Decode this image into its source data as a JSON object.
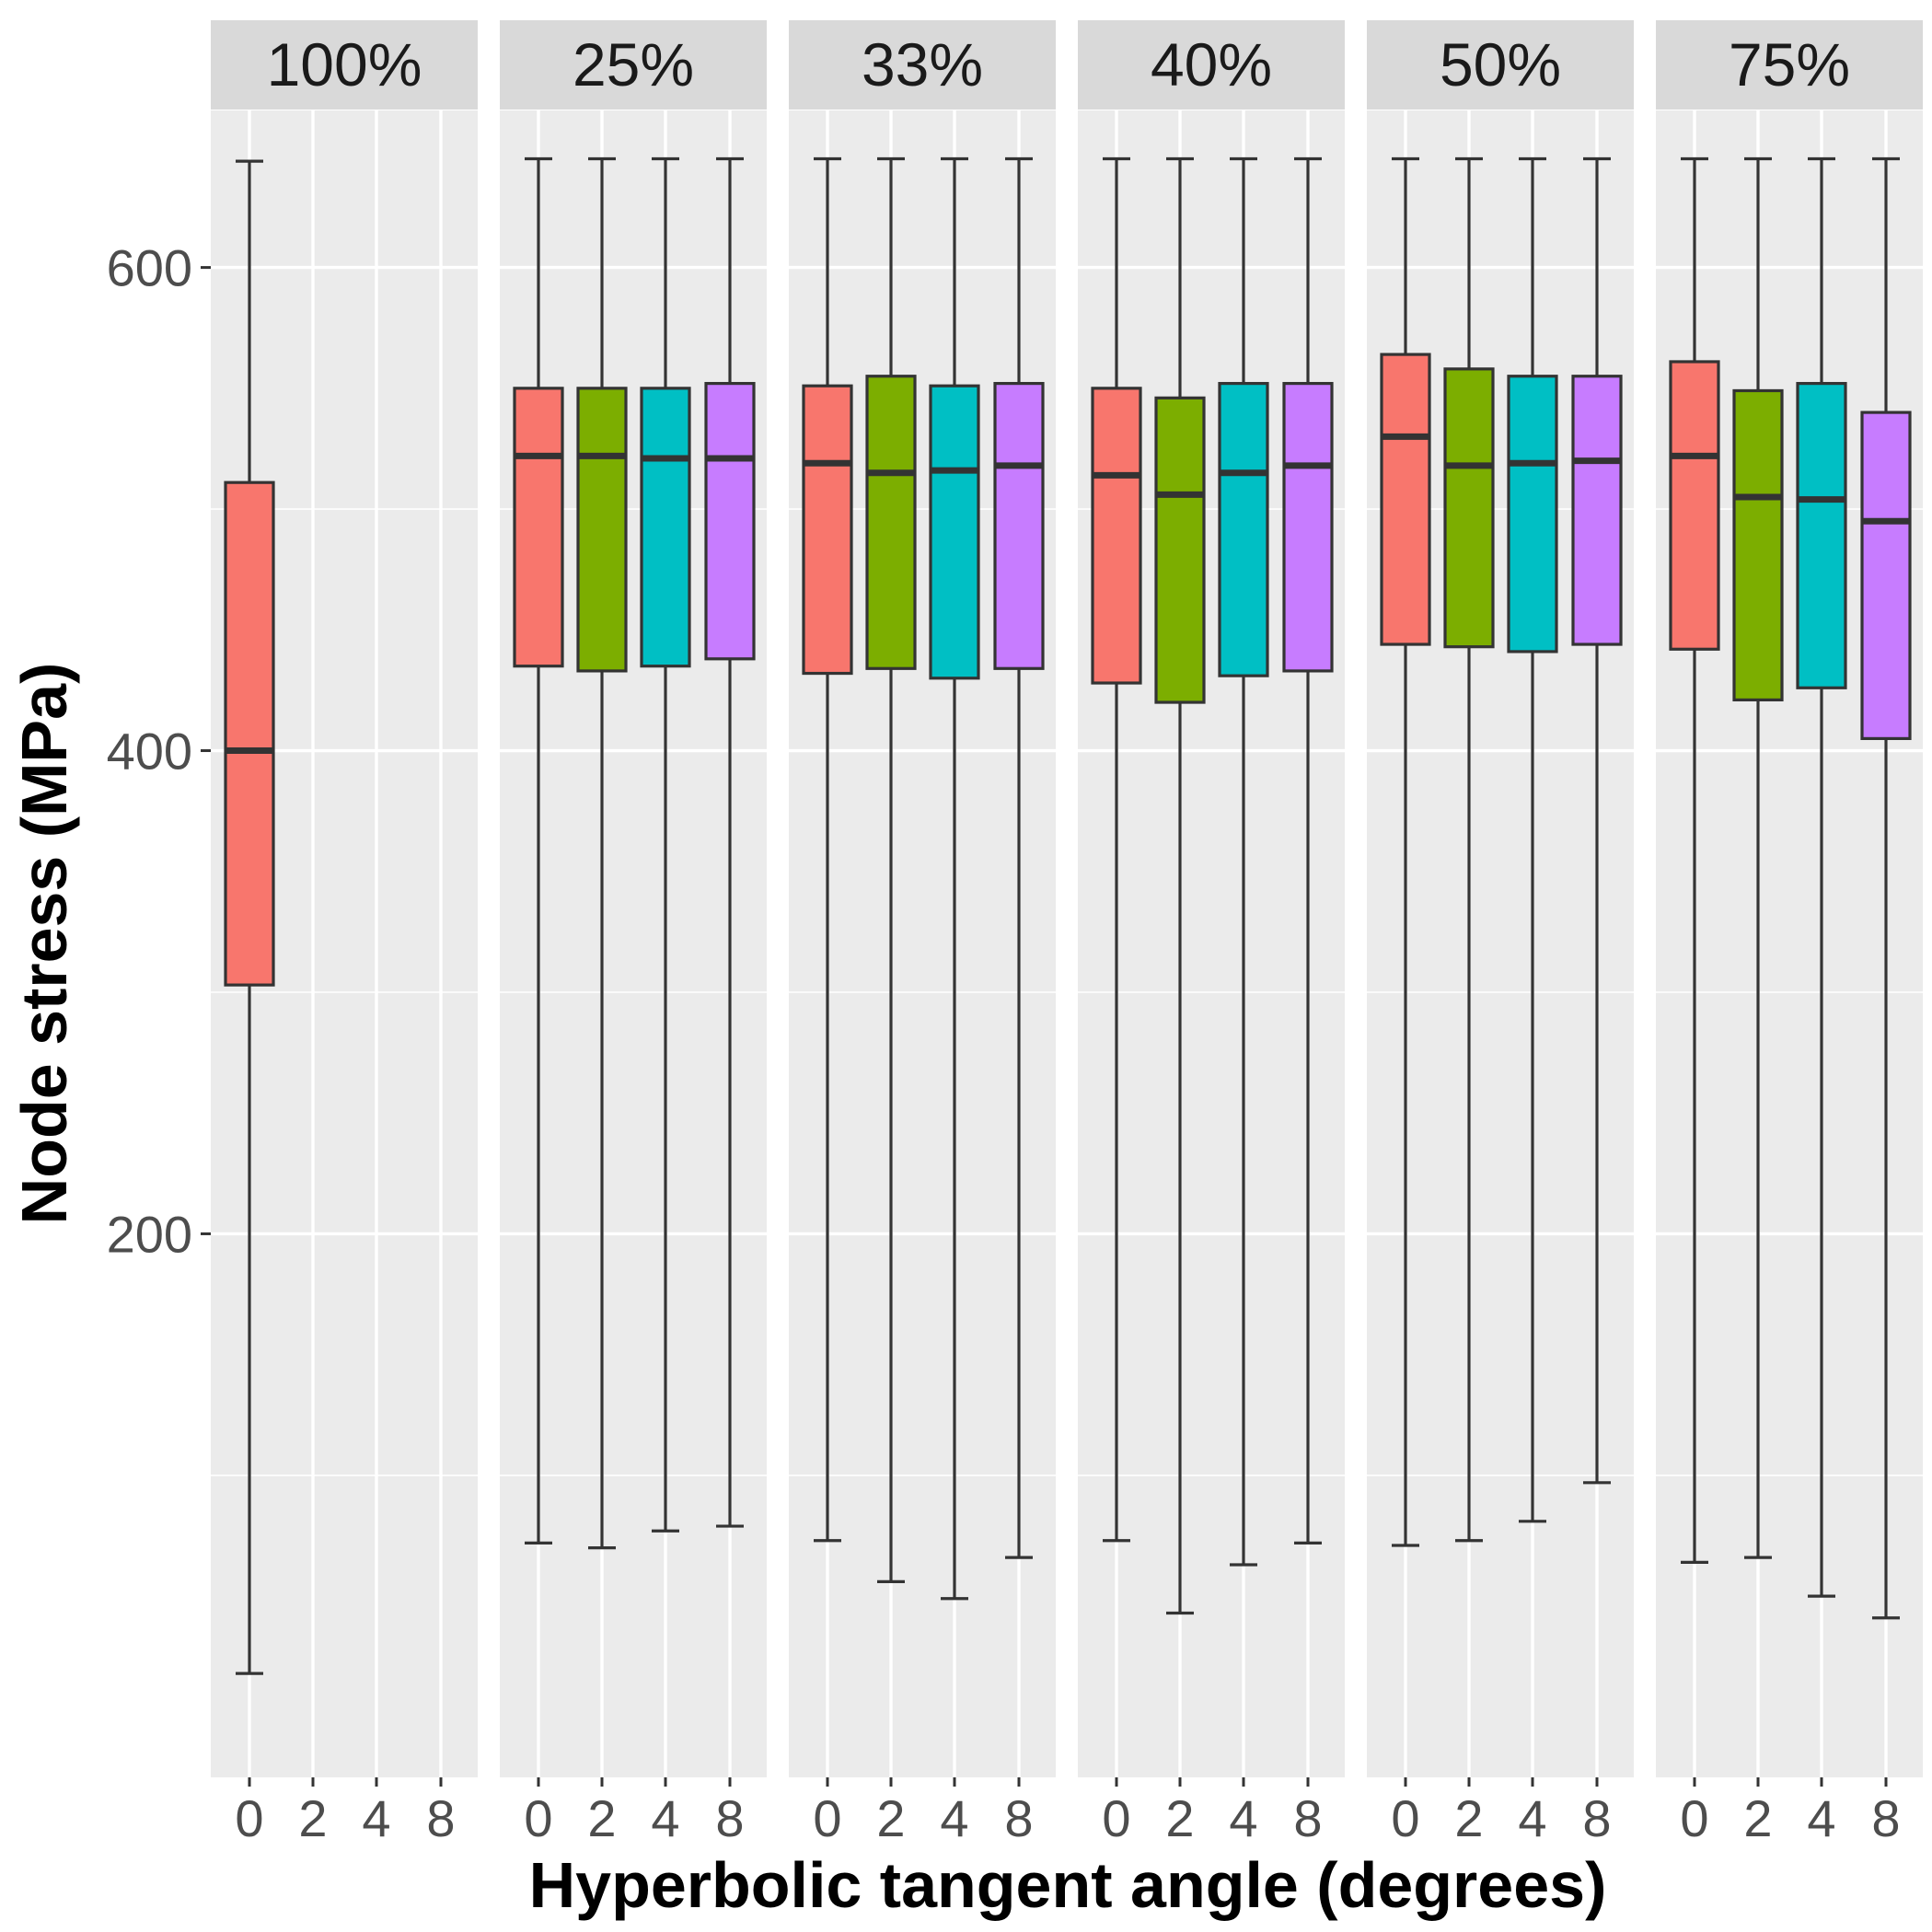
{
  "chart_data": {
    "type": "boxplot",
    "xlabel": "Hyperbolic tangent angle (degrees)",
    "ylabel": "Node stress (MPa)",
    "ylim": [
      -25,
      665
    ],
    "y_ticks": [
      200,
      400,
      600
    ],
    "x_categories": [
      "0",
      "2",
      "4",
      "8"
    ],
    "colors": {
      "0": "#F8766D",
      "2": "#7CAE00",
      "4": "#00BFC4",
      "8": "#C77CFF"
    },
    "panel_background": "#EBEBEB",
    "grid_color": "#FFFFFF",
    "strip_background": "#D9D9D9",
    "grid": true,
    "legend": "none",
    "panels": [
      {
        "label": "100%",
        "boxes": [
          {
            "x": "0",
            "whisker_low": 18,
            "q1": 303,
            "median": 400,
            "q3": 511,
            "whisker_high": 644
          }
        ]
      },
      {
        "label": "25%",
        "boxes": [
          {
            "x": "0",
            "whisker_low": 72,
            "q1": 435,
            "median": 522,
            "q3": 550,
            "whisker_high": 645
          },
          {
            "x": "2",
            "whisker_low": 70,
            "q1": 433,
            "median": 522,
            "q3": 550,
            "whisker_high": 645
          },
          {
            "x": "4",
            "whisker_low": 77,
            "q1": 435,
            "median": 521,
            "q3": 550,
            "whisker_high": 645
          },
          {
            "x": "8",
            "whisker_low": 79,
            "q1": 438,
            "median": 521,
            "q3": 552,
            "whisker_high": 645
          }
        ]
      },
      {
        "label": "33%",
        "boxes": [
          {
            "x": "0",
            "whisker_low": 73,
            "q1": 432,
            "median": 519,
            "q3": 551,
            "whisker_high": 645
          },
          {
            "x": "2",
            "whisker_low": 56,
            "q1": 434,
            "median": 515,
            "q3": 555,
            "whisker_high": 645
          },
          {
            "x": "4",
            "whisker_low": 49,
            "q1": 430,
            "median": 516,
            "q3": 551,
            "whisker_high": 645
          },
          {
            "x": "8",
            "whisker_low": 66,
            "q1": 434,
            "median": 518,
            "q3": 552,
            "whisker_high": 645
          }
        ]
      },
      {
        "label": "40%",
        "boxes": [
          {
            "x": "0",
            "whisker_low": 73,
            "q1": 428,
            "median": 514,
            "q3": 550,
            "whisker_high": 645
          },
          {
            "x": "2",
            "whisker_low": 43,
            "q1": 420,
            "median": 506,
            "q3": 546,
            "whisker_high": 645
          },
          {
            "x": "4",
            "whisker_low": 63,
            "q1": 431,
            "median": 515,
            "q3": 552,
            "whisker_high": 645
          },
          {
            "x": "8",
            "whisker_low": 72,
            "q1": 433,
            "median": 518,
            "q3": 552,
            "whisker_high": 645
          }
        ]
      },
      {
        "label": "50%",
        "boxes": [
          {
            "x": "0",
            "whisker_low": 71,
            "q1": 444,
            "median": 530,
            "q3": 564,
            "whisker_high": 645
          },
          {
            "x": "2",
            "whisker_low": 73,
            "q1": 443,
            "median": 518,
            "q3": 558,
            "whisker_high": 645
          },
          {
            "x": "4",
            "whisker_low": 81,
            "q1": 441,
            "median": 519,
            "q3": 555,
            "whisker_high": 645
          },
          {
            "x": "8",
            "whisker_low": 97,
            "q1": 444,
            "median": 520,
            "q3": 555,
            "whisker_high": 645
          }
        ]
      },
      {
        "label": "75%",
        "boxes": [
          {
            "x": "0",
            "whisker_low": 64,
            "q1": 442,
            "median": 522,
            "q3": 561,
            "whisker_high": 645
          },
          {
            "x": "2",
            "whisker_low": 66,
            "q1": 421,
            "median": 505,
            "q3": 549,
            "whisker_high": 645
          },
          {
            "x": "4",
            "whisker_low": 50,
            "q1": 426,
            "median": 504,
            "q3": 552,
            "whisker_high": 645
          },
          {
            "x": "8",
            "whisker_low": 41,
            "q1": 405,
            "median": 495,
            "q3": 540,
            "whisker_high": 645
          }
        ]
      }
    ]
  }
}
